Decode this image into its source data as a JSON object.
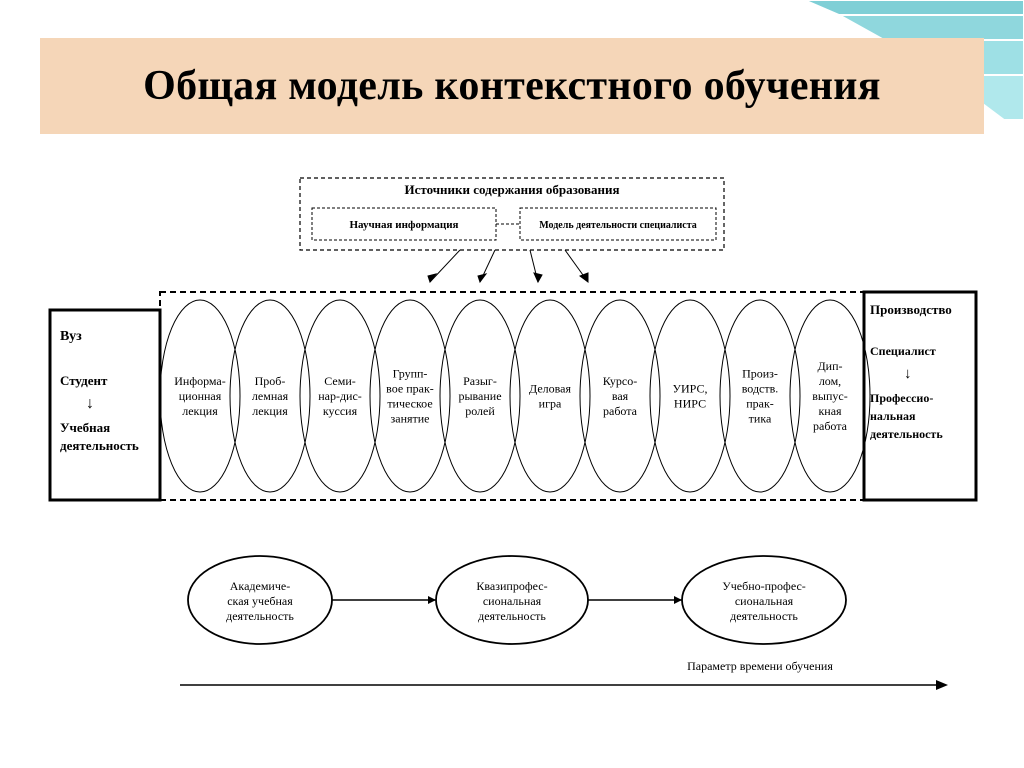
{
  "title": "Общая модель контекстного обучения",
  "colors": {
    "title_bg": "#f5d6b8",
    "corner_fill": "#7fcfd6",
    "corner_stroke": "#ffffff",
    "page_bg": "#ffffff",
    "line": "#000000",
    "text": "#000000"
  },
  "typography": {
    "title_fontsize": 42,
    "title_weight": "bold",
    "node_fontsize": 12,
    "header_fontsize": 13
  },
  "diagram": {
    "type": "flowchart",
    "top_block": {
      "title": "Источники содержания образования",
      "items": [
        "Научная информация",
        "Модель деятельности специалиста"
      ],
      "border_style": "dashed"
    },
    "left_box": {
      "lines": [
        "Вуз",
        "",
        "Студент",
        "↓",
        "Учебная",
        "деятельность"
      ],
      "border_style": "solid",
      "border_width": 3
    },
    "right_box": {
      "lines": [
        "Производство",
        "",
        "Специалист",
        "↓",
        "Профессио-",
        "нальная",
        "деятельность"
      ],
      "border_style": "solid",
      "border_width": 3
    },
    "ellipses_strip": {
      "border_style": "dashed",
      "count": 10,
      "items": [
        [
          "Информа-",
          "ционная",
          "лекция"
        ],
        [
          "Проб-",
          "лемная",
          "лекция"
        ],
        [
          "Семи-",
          "нар-дис-",
          "куссия"
        ],
        [
          "Групп-",
          "вое прак-",
          "тическое",
          "занятие"
        ],
        [
          "Разыг-",
          "рывание",
          "ролей"
        ],
        [
          "Деловая",
          "игра"
        ],
        [
          "Курсо-",
          "вая",
          "работа"
        ],
        [
          "УИРС,",
          "НИРС"
        ],
        [
          "Произ-",
          "водств.",
          "прак-",
          "тика"
        ],
        [
          "Дип-",
          "лом,",
          "выпус-",
          "кная",
          "работа"
        ]
      ]
    },
    "bottom_circles": [
      [
        "Академиче-",
        "ская учебная",
        "деятельность"
      ],
      [
        "Квазипрофес-",
        "сиональная",
        "деятельность"
      ],
      [
        "Учебно-профес-",
        "сиональная",
        "деятельность"
      ]
    ],
    "timeline_label": "Параметр времени обучения"
  }
}
